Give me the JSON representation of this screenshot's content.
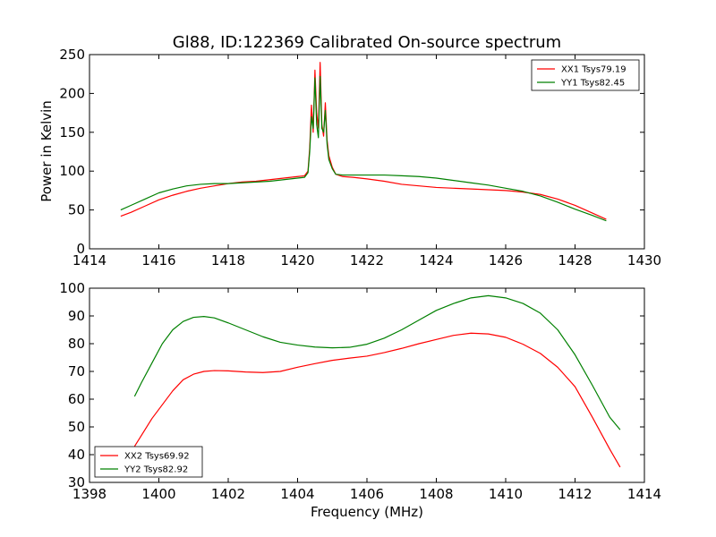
{
  "chart_data": [
    {
      "type": "line",
      "title": "Gl88, ID:122369 Calibrated On-source spectrum",
      "xlabel": "",
      "ylabel": "Power in Kelvin",
      "xlim": [
        1414,
        1430
      ],
      "ylim": [
        0,
        250
      ],
      "xticks": [
        "1414",
        "1416",
        "1418",
        "1420",
        "1422",
        "1424",
        "1426",
        "1428",
        "1430"
      ],
      "yticks": [
        "0",
        "50",
        "100",
        "150",
        "200",
        "250"
      ],
      "grid": false,
      "legend_position": "top-right",
      "series": [
        {
          "name": "XX1 Tsys79.19",
          "color": "#ff0000",
          "points": [
            [
              1414.9,
              42
            ],
            [
              1415.2,
              47
            ],
            [
              1415.6,
              55
            ],
            [
              1416.0,
              63
            ],
            [
              1416.4,
              69
            ],
            [
              1416.8,
              74
            ],
            [
              1417.2,
              78
            ],
            [
              1417.6,
              81
            ],
            [
              1418.0,
              84
            ],
            [
              1418.4,
              86
            ],
            [
              1418.8,
              87
            ],
            [
              1419.2,
              89
            ],
            [
              1419.6,
              91
            ],
            [
              1420.0,
              93
            ],
            [
              1420.2,
              94
            ],
            [
              1420.3,
              100
            ],
            [
              1420.35,
              130
            ],
            [
              1420.4,
              185
            ],
            [
              1420.45,
              150
            ],
            [
              1420.5,
              230
            ],
            [
              1420.55,
              175
            ],
            [
              1420.6,
              155
            ],
            [
              1420.65,
              240
            ],
            [
              1420.7,
              160
            ],
            [
              1420.75,
              145
            ],
            [
              1420.8,
              188
            ],
            [
              1420.85,
              140
            ],
            [
              1420.9,
              120
            ],
            [
              1421.0,
              105
            ],
            [
              1421.1,
              96
            ],
            [
              1421.3,
              93
            ],
            [
              1421.6,
              92
            ],
            [
              1422.0,
              90
            ],
            [
              1422.5,
              87
            ],
            [
              1423.0,
              83
            ],
            [
              1423.5,
              81
            ],
            [
              1424.0,
              79
            ],
            [
              1424.5,
              78
            ],
            [
              1425.0,
              77
            ],
            [
              1425.5,
              76
            ],
            [
              1426.0,
              75
            ],
            [
              1426.5,
              73
            ],
            [
              1427.0,
              70
            ],
            [
              1427.5,
              64
            ],
            [
              1428.0,
              56
            ],
            [
              1428.5,
              46
            ],
            [
              1428.9,
              38
            ]
          ]
        },
        {
          "name": "YY1 Tsys82.45",
          "color": "#008000",
          "points": [
            [
              1414.9,
              50
            ],
            [
              1415.2,
              56
            ],
            [
              1415.6,
              64
            ],
            [
              1416.0,
              72
            ],
            [
              1416.4,
              77
            ],
            [
              1416.8,
              81
            ],
            [
              1417.2,
              83
            ],
            [
              1417.6,
              84
            ],
            [
              1418.0,
              84
            ],
            [
              1418.4,
              85
            ],
            [
              1418.8,
              86
            ],
            [
              1419.2,
              87
            ],
            [
              1419.6,
              89
            ],
            [
              1420.0,
              91
            ],
            [
              1420.2,
              92
            ],
            [
              1420.3,
              98
            ],
            [
              1420.35,
              125
            ],
            [
              1420.4,
              170
            ],
            [
              1420.45,
              155
            ],
            [
              1420.5,
              220
            ],
            [
              1420.55,
              160
            ],
            [
              1420.6,
              143
            ],
            [
              1420.65,
              222
            ],
            [
              1420.7,
              155
            ],
            [
              1420.75,
              150
            ],
            [
              1420.8,
              178
            ],
            [
              1420.85,
              135
            ],
            [
              1420.9,
              115
            ],
            [
              1421.0,
              103
            ],
            [
              1421.1,
              96
            ],
            [
              1421.3,
              95
            ],
            [
              1421.6,
              95
            ],
            [
              1422.0,
              95
            ],
            [
              1422.5,
              95
            ],
            [
              1423.0,
              94
            ],
            [
              1423.5,
              93
            ],
            [
              1424.0,
              91
            ],
            [
              1424.5,
              88
            ],
            [
              1425.0,
              85
            ],
            [
              1425.5,
              82
            ],
            [
              1426.0,
              78
            ],
            [
              1426.5,
              74
            ],
            [
              1427.0,
              68
            ],
            [
              1427.5,
              60
            ],
            [
              1428.0,
              51
            ],
            [
              1428.5,
              43
            ],
            [
              1428.9,
              36
            ]
          ]
        }
      ]
    },
    {
      "type": "line",
      "title": "",
      "xlabel": "Frequency (MHz)",
      "ylabel": "",
      "xlim": [
        1398,
        1414
      ],
      "ylim": [
        30,
        100
      ],
      "xticks": [
        "1398",
        "1400",
        "1402",
        "1404",
        "1406",
        "1408",
        "1410",
        "1412",
        "1414"
      ],
      "yticks": [
        "30",
        "40",
        "50",
        "60",
        "70",
        "80",
        "90",
        "100"
      ],
      "grid": false,
      "legend_position": "bottom-left",
      "series": [
        {
          "name": "XX2 Tsys69.92",
          "color": "#ff0000",
          "points": [
            [
              1399.3,
              43
            ],
            [
              1399.5,
              47
            ],
            [
              1399.8,
              53
            ],
            [
              1400.1,
              58
            ],
            [
              1400.4,
              63
            ],
            [
              1400.7,
              67
            ],
            [
              1401.0,
              69
            ],
            [
              1401.3,
              70
            ],
            [
              1401.6,
              70.3
            ],
            [
              1402.0,
              70.2
            ],
            [
              1402.5,
              69.8
            ],
            [
              1403.0,
              69.6
            ],
            [
              1403.5,
              70
            ],
            [
              1404.0,
              71.5
            ],
            [
              1404.5,
              72.8
            ],
            [
              1405.0,
              74
            ],
            [
              1405.5,
              74.8
            ],
            [
              1406.0,
              75.5
            ],
            [
              1406.5,
              76.8
            ],
            [
              1407.0,
              78.3
            ],
            [
              1407.5,
              80
            ],
            [
              1408.0,
              81.5
            ],
            [
              1408.5,
              83
            ],
            [
              1409.0,
              83.8
            ],
            [
              1409.5,
              83.5
            ],
            [
              1410.0,
              82.3
            ],
            [
              1410.5,
              79.8
            ],
            [
              1411.0,
              76.5
            ],
            [
              1411.5,
              71.5
            ],
            [
              1412.0,
              64.5
            ],
            [
              1412.5,
              53.5
            ],
            [
              1413.0,
              42
            ],
            [
              1413.3,
              35.5
            ]
          ]
        },
        {
          "name": "YY2 Tsys82.92",
          "color": "#008000",
          "points": [
            [
              1399.3,
              61
            ],
            [
              1399.5,
              66
            ],
            [
              1399.8,
              73
            ],
            [
              1400.1,
              80
            ],
            [
              1400.4,
              85
            ],
            [
              1400.7,
              88
            ],
            [
              1401.0,
              89.5
            ],
            [
              1401.3,
              89.8
            ],
            [
              1401.6,
              89.3
            ],
            [
              1402.0,
              87.5
            ],
            [
              1402.5,
              85
            ],
            [
              1403.0,
              82.5
            ],
            [
              1403.5,
              80.5
            ],
            [
              1404.0,
              79.5
            ],
            [
              1404.5,
              78.8
            ],
            [
              1405.0,
              78.5
            ],
            [
              1405.5,
              78.7
            ],
            [
              1406.0,
              79.8
            ],
            [
              1406.5,
              82
            ],
            [
              1407.0,
              85
            ],
            [
              1407.5,
              88.5
            ],
            [
              1408.0,
              92
            ],
            [
              1408.5,
              94.5
            ],
            [
              1409.0,
              96.5
            ],
            [
              1409.5,
              97.3
            ],
            [
              1410.0,
              96.5
            ],
            [
              1410.5,
              94.5
            ],
            [
              1411.0,
              91
            ],
            [
              1411.5,
              85
            ],
            [
              1412.0,
              76
            ],
            [
              1412.5,
              65
            ],
            [
              1413.0,
              53.5
            ],
            [
              1413.3,
              49
            ]
          ]
        }
      ]
    }
  ]
}
